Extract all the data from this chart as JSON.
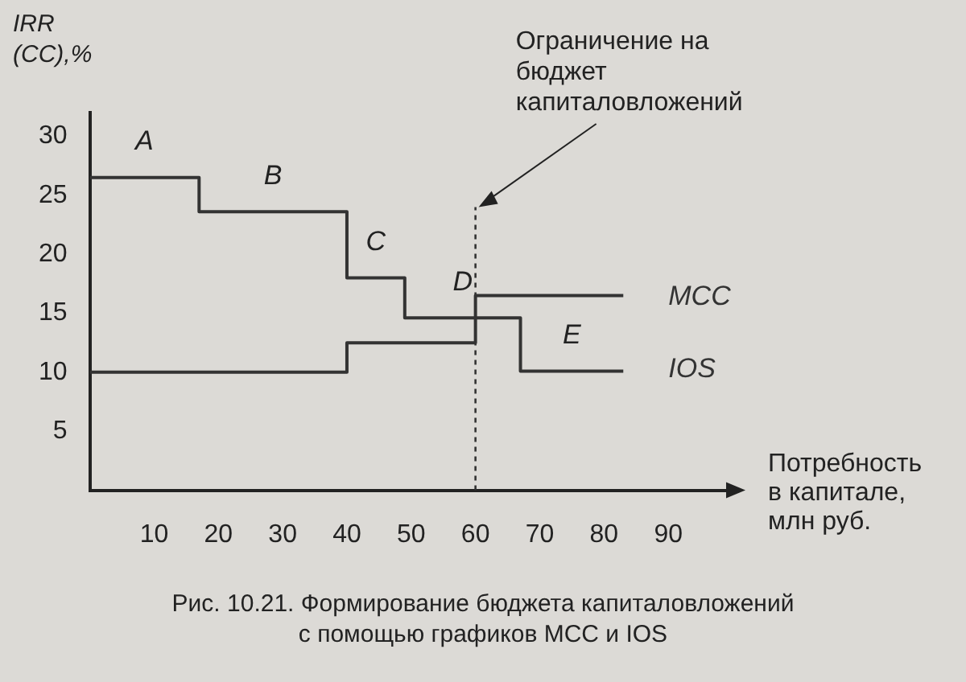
{
  "chart_data": {
    "type": "step",
    "ylabel": "IRR\n(CC),%",
    "xlabel": "Потребность\nв капитале,\nмлн руб.",
    "xlim": [
      0,
      100
    ],
    "ylim": [
      0,
      32
    ],
    "xticks": [
      10,
      20,
      30,
      40,
      50,
      60,
      70,
      80,
      90
    ],
    "yticks": [
      5,
      10,
      15,
      20,
      25,
      30
    ],
    "grid": false,
    "legend": false,
    "line_style": "solid",
    "marker": "none",
    "series": [
      {
        "name": "IOS",
        "color": "#333333",
        "x": [
          0,
          17,
          40,
          49,
          67,
          83
        ],
        "values": [
          26.5,
          23.6,
          18,
          14.6,
          10.1,
          10.1
        ]
      },
      {
        "name": "MCC",
        "color": "#333333",
        "x": [
          0,
          40,
          60,
          83
        ],
        "values": [
          10,
          12.5,
          16.5,
          16.5
        ]
      }
    ],
    "ref_lines": [
      {
        "axis": "x",
        "value": 60,
        "label": "Ограничение на\nбюджет\nкапиталовложений",
        "line_style": "dotted",
        "color": "#333333"
      }
    ],
    "annotations": [
      "A",
      "B",
      "C",
      "D",
      "E",
      "Рис. 10.21. Формирование бюджета капиталовложений\nс помощью графиков MCC и IOS"
    ]
  }
}
